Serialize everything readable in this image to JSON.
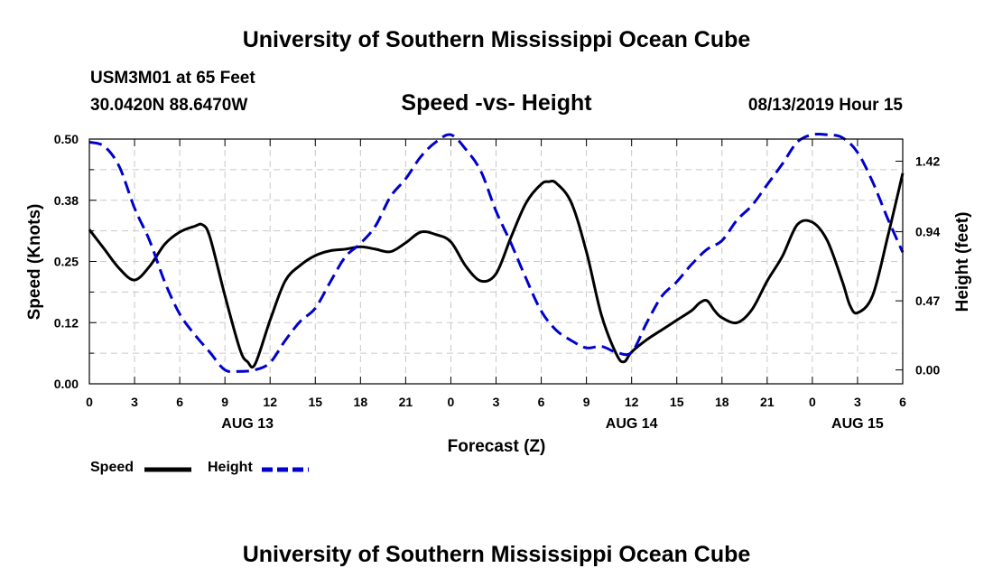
{
  "header": {
    "top_title": "University of Southern Mississippi Ocean Cube",
    "station": "USM3M01 at 65 Feet",
    "coordinates": "30.0420N 88.6470W",
    "chart_title": "Speed -vs- Height",
    "datetime": "08/13/2019 Hour 15",
    "bottom_title": "University of Southern Mississippi Ocean Cube"
  },
  "chart_data": {
    "type": "line",
    "title": "Speed -vs- Height",
    "xlabel": "Forecast (Z)",
    "ylabel": "Speed (Knots)",
    "y2label": "Height (feet)",
    "x_range_hours": [
      0,
      54
    ],
    "x_ticks": [
      {
        "h": 0,
        "label": "0"
      },
      {
        "h": 3,
        "label": "3"
      },
      {
        "h": 6,
        "label": "6"
      },
      {
        "h": 9,
        "label": "9"
      },
      {
        "h": 12,
        "label": "12"
      },
      {
        "h": 15,
        "label": "15"
      },
      {
        "h": 18,
        "label": "18"
      },
      {
        "h": 21,
        "label": "21"
      },
      {
        "h": 24,
        "label": "0"
      },
      {
        "h": 27,
        "label": "3"
      },
      {
        "h": 30,
        "label": "6"
      },
      {
        "h": 33,
        "label": "9"
      },
      {
        "h": 36,
        "label": "12"
      },
      {
        "h": 39,
        "label": "15"
      },
      {
        "h": 42,
        "label": "18"
      },
      {
        "h": 45,
        "label": "21"
      },
      {
        "h": 48,
        "label": "0"
      },
      {
        "h": 51,
        "label": "3"
      },
      {
        "h": 54,
        "label": "6"
      }
    ],
    "date_labels": [
      {
        "h": 10.5,
        "label": "AUG 13"
      },
      {
        "h": 36,
        "label": "AUG 14"
      },
      {
        "h": 51,
        "label": "AUG 15"
      }
    ],
    "ylim": [
      0,
      0.5
    ],
    "y_ticks": [
      "0.00",
      "0.12",
      "0.25",
      "0.38",
      "0.50"
    ],
    "y2lim": [
      -0.0945,
      1.5705
    ],
    "y2_ticks": [
      "0.00",
      "0.47",
      "0.94",
      "1.42"
    ],
    "y2_tick_values": [
      0,
      0.47,
      0.94,
      1.42
    ],
    "series": [
      {
        "name": "Speed",
        "axis": "left",
        "color": "#000000",
        "dash": "solid",
        "x": [
          0,
          1,
          2,
          3,
          4,
          5,
          6,
          7,
          7.5,
          8,
          9,
          10,
          10.5,
          11,
          12,
          13,
          14,
          15,
          16,
          17,
          18,
          19,
          20,
          21,
          22,
          23,
          24,
          25,
          26,
          27,
          28,
          29,
          30,
          30.5,
          31,
          32,
          33,
          34,
          35,
          35.5,
          36,
          37,
          38,
          39,
          40,
          40.5,
          41,
          41.5,
          42,
          43,
          44,
          45,
          46,
          47,
          48,
          49,
          50,
          50.5,
          51,
          52,
          53,
          54
        ],
        "values": [
          0.315,
          0.275,
          0.235,
          0.212,
          0.24,
          0.285,
          0.31,
          0.322,
          0.325,
          0.3,
          0.18,
          0.07,
          0.045,
          0.04,
          0.13,
          0.21,
          0.242,
          0.262,
          0.272,
          0.275,
          0.28,
          0.275,
          0.27,
          0.288,
          0.31,
          0.305,
          0.29,
          0.24,
          0.21,
          0.225,
          0.3,
          0.37,
          0.408,
          0.413,
          0.41,
          0.37,
          0.27,
          0.14,
          0.06,
          0.045,
          0.065,
          0.09,
          0.11,
          0.13,
          0.15,
          0.165,
          0.17,
          0.15,
          0.135,
          0.125,
          0.152,
          0.21,
          0.26,
          0.325,
          0.33,
          0.292,
          0.208,
          0.16,
          0.145,
          0.18,
          0.3,
          0.43
        ]
      },
      {
        "name": "Height",
        "axis": "right",
        "color": "#0000cc",
        "dash": "dashed",
        "x": [
          0,
          1,
          2,
          3,
          4,
          5,
          6,
          7,
          8,
          9,
          10,
          11,
          12,
          13,
          14,
          15,
          16,
          17,
          18,
          19,
          20,
          21,
          22,
          23,
          24,
          25,
          26,
          27,
          28,
          29,
          30,
          31,
          32,
          33,
          34,
          35,
          36,
          37,
          38,
          39,
          40,
          41,
          42,
          43,
          44,
          45,
          46,
          47,
          48,
          49,
          50,
          51,
          52,
          53,
          54
        ],
        "values": [
          1.55,
          1.52,
          1.38,
          1.1,
          0.88,
          0.6,
          0.38,
          0.24,
          0.12,
          0.0,
          -0.01,
          0.0,
          0.05,
          0.2,
          0.33,
          0.42,
          0.6,
          0.77,
          0.86,
          0.98,
          1.18,
          1.3,
          1.45,
          1.55,
          1.6,
          1.5,
          1.35,
          1.08,
          0.86,
          0.62,
          0.4,
          0.27,
          0.2,
          0.15,
          0.16,
          0.12,
          0.12,
          0.32,
          0.5,
          0.6,
          0.72,
          0.82,
          0.88,
          1.02,
          1.12,
          1.26,
          1.4,
          1.55,
          1.6,
          1.6,
          1.58,
          1.48,
          1.28,
          1.03,
          0.8
        ]
      }
    ],
    "grid": true,
    "legend": [
      {
        "name": "Speed",
        "color": "#000000"
      },
      {
        "name": "Height",
        "color": "#0000cc"
      }
    ],
    "legend_position": "bottom-left"
  },
  "icons": [
    "legend-speed-swatch",
    "legend-height-swatch"
  ]
}
